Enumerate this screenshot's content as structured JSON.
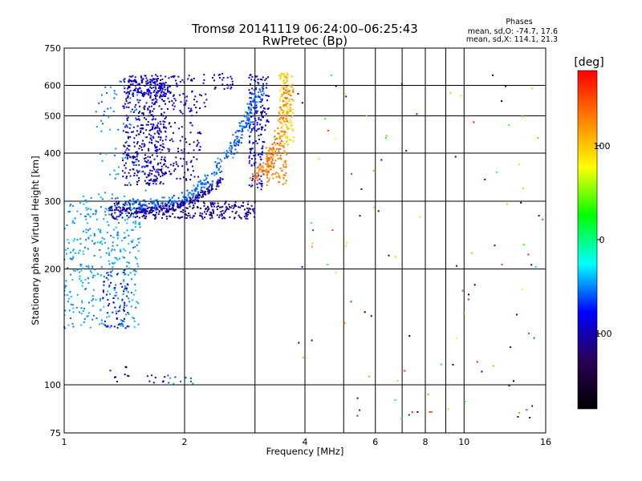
{
  "chart_data": {
    "type": "scatter",
    "title": "Tromsø 20141119 06:24:00–06:25:43",
    "subtitle": "RwPretec (Bp)",
    "stats": {
      "heading": "Phases",
      "line_o": "mean, sd,O: -74.7, 17.6",
      "line_x": "mean, sd,X: 114.1, 21.3"
    },
    "xlabel": "Frequency [MHz]",
    "ylabel": "Stationary phase Virtual Height [km]",
    "x_scale": "log",
    "y_scale": "log",
    "xlim": [
      1,
      16
    ],
    "ylim": [
      75,
      750
    ],
    "x_ticks": [
      1,
      2,
      4,
      6,
      8,
      10,
      16
    ],
    "x_tick_labels": [
      "1",
      "2",
      "4",
      "6",
      "8",
      "10",
      "16"
    ],
    "x_minor_grid": [
      3,
      5,
      7,
      9
    ],
    "y_ticks": [
      75,
      100,
      200,
      300,
      400,
      500,
      600,
      750
    ],
    "y_tick_labels": [
      "75",
      "100",
      "200",
      "300",
      "400",
      "500",
      "600",
      "750"
    ],
    "grid": true,
    "colorbar": {
      "label": "[deg]",
      "range": [
        -180,
        180
      ],
      "ticks": [
        100,
        0,
        -100
      ],
      "tick_labels": [
        "100",
        "0",
        "-100"
      ],
      "colors": [
        "#000000",
        "#2a0055",
        "#0000ff",
        "#00ffff",
        "#00ff00",
        "#ffff00",
        "#ff8000",
        "#ff0000"
      ]
    },
    "series": [
      {
        "clusters": [
          {
            "x": [
              1.0,
              1.55
            ],
            "y": [
              140,
              310
            ],
            "phase": [
              -55,
              -35
            ],
            "n": 380
          },
          {
            "x": [
              1.25,
              1.45
            ],
            "y": [
              140,
              200
            ],
            "phase": [
              -100,
              -70
            ],
            "n": 60
          },
          {
            "x": [
              1.2,
              1.6
            ],
            "y": [
              280,
              620
            ],
            "phase": [
              -60,
              -40
            ],
            "n": 80
          },
          {
            "x": [
              1.4,
              1.8
            ],
            "y": [
              330,
              630
            ],
            "phase": [
              -110,
              -80
            ],
            "n": 420
          },
          {
            "x": [
              1.45,
              1.85
            ],
            "y": [
              560,
              640
            ],
            "phase": [
              -100,
              -80
            ],
            "n": 90
          },
          {
            "x": [
              1.8,
              2.3
            ],
            "y": [
              500,
              640
            ],
            "phase": [
              -100,
              -80
            ],
            "n": 70
          },
          {
            "x": [
              2.35,
              2.65
            ],
            "y": [
              585,
              650
            ],
            "phase": [
              -100,
              -80
            ],
            "n": 25
          },
          {
            "x": [
              1.6,
              2.2
            ],
            "y": [
              340,
              480
            ],
            "phase": [
              -110,
              -80
            ],
            "n": 120
          },
          {
            "x": [
              1.3,
              3.0
            ],
            "y": [
              270,
              300
            ],
            "phase": [
              -115,
              -95
            ],
            "n": 300
          },
          {
            "x": [
              2.9,
              3.15
            ],
            "y": [
              320,
              650
            ],
            "phase": [
              -90,
              -70
            ],
            "n": 140
          },
          {
            "x": [
              3.1,
              3.25
            ],
            "y": [
              420,
              650
            ],
            "phase": [
              -105,
              -85
            ],
            "n": 40
          },
          {
            "x": [
              3.2,
              3.6
            ],
            "y": [
              330,
              420
            ],
            "phase": [
              115,
              140
            ],
            "n": 90
          },
          {
            "x": [
              3.45,
              3.75
            ],
            "y": [
              420,
              650
            ],
            "phase": [
              85,
              110
            ],
            "n": 120
          },
          {
            "x": [
              1.3,
              1.5
            ],
            "y": [
              100,
              112
            ],
            "phase": [
              -110,
              -90
            ],
            "n": 10
          },
          {
            "x": [
              1.6,
              1.8
            ],
            "y": [
              100,
              106
            ],
            "phase": [
              -110,
              -90
            ],
            "n": 8
          },
          {
            "x": [
              1.8,
              2.1
            ],
            "y": [
              100,
              106
            ],
            "phase": [
              -70,
              -40
            ],
            "n": 10
          },
          {
            "x": [
              3.8,
              16
            ],
            "y": [
              80,
              650
            ],
            "phase": [
              -180,
              180
            ],
            "n": 110
          }
        ],
        "curves": [
          {
            "x": [
              1.45,
              1.7,
              2.0,
              2.3,
              2.6,
              2.8,
              2.95,
              3.1
            ],
            "y": [
              295,
              295,
              305,
              340,
              400,
              460,
              530,
              600
            ],
            "phase": [
              -70,
              -45
            ],
            "spread": 0.03,
            "n": 320
          },
          {
            "x": [
              1.3,
              1.6,
              1.9,
              2.2,
              2.5
            ],
            "y": [
              285,
              283,
              290,
              310,
              340
            ],
            "phase": [
              -115,
              -90
            ],
            "spread": 0.018,
            "n": 180
          },
          {
            "x": [
              3.0,
              3.2,
              3.4,
              3.55,
              3.65
            ],
            "y": [
              340,
              370,
              420,
              500,
              600
            ],
            "phase": [
              110,
              150
            ],
            "spread": 0.03,
            "n": 160
          }
        ]
      }
    ]
  }
}
